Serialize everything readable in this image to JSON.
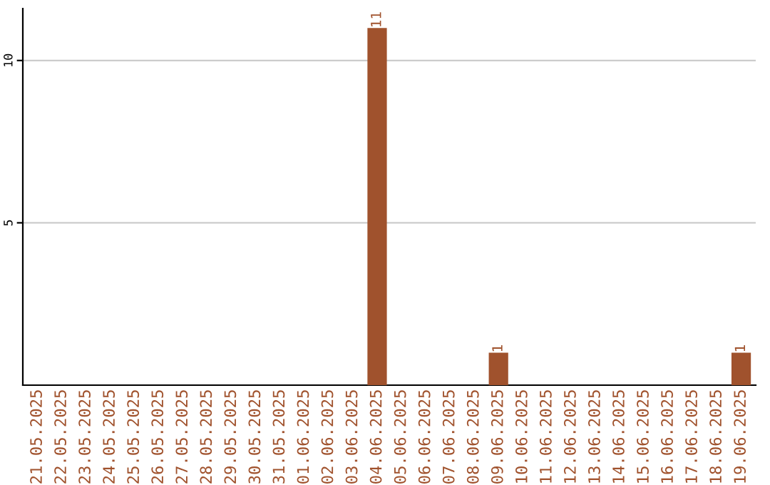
{
  "chart_data": {
    "type": "bar",
    "categories": [
      "21.05.2025",
      "22.05.2025",
      "23.05.2025",
      "24.05.2025",
      "25.05.2025",
      "26.05.2025",
      "27.05.2025",
      "28.05.2025",
      "29.05.2025",
      "30.05.2025",
      "31.05.2025",
      "01.06.2025",
      "02.06.2025",
      "03.06.2025",
      "04.06.2025",
      "05.06.2025",
      "06.06.2025",
      "07.06.2025",
      "08.06.2025",
      "09.06.2025",
      "10.06.2025",
      "11.06.2025",
      "12.06.2025",
      "13.06.2025",
      "14.06.2025",
      "15.06.2025",
      "16.06.2025",
      "17.06.2025",
      "18.06.2025",
      "19.06.2025"
    ],
    "values": [
      0,
      0,
      0,
      0,
      0,
      0,
      0,
      0,
      0,
      0,
      0,
      0,
      0,
      0,
      11,
      0,
      0,
      0,
      0,
      1,
      0,
      0,
      0,
      0,
      0,
      0,
      0,
      0,
      0,
      1
    ],
    "value_labels": [
      null,
      null,
      null,
      null,
      null,
      null,
      null,
      null,
      null,
      null,
      null,
      null,
      null,
      null,
      "11",
      null,
      null,
      null,
      null,
      "1",
      null,
      null,
      null,
      null,
      null,
      null,
      null,
      null,
      null,
      "1"
    ],
    "color": "#a0522d",
    "ylim": [
      0,
      11.6
    ],
    "yticks": [
      5,
      10
    ],
    "grid": "y"
  }
}
